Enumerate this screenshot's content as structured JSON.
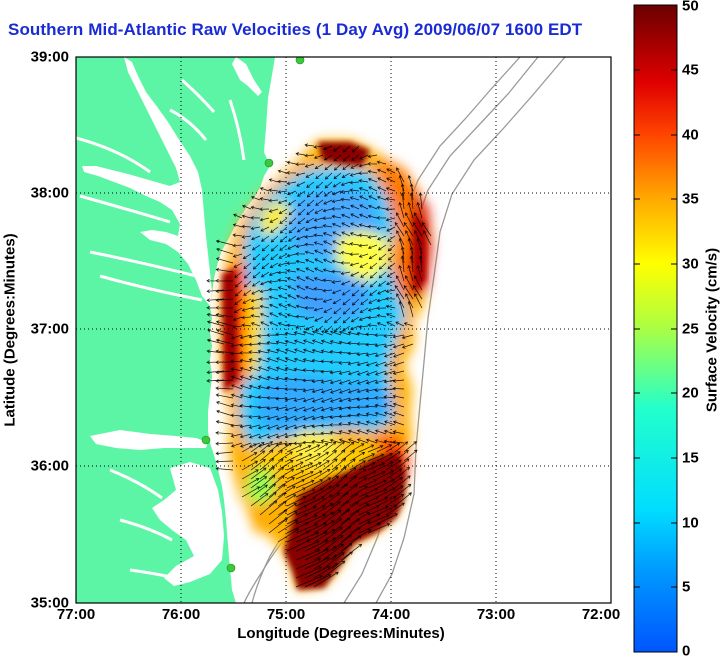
{
  "title": "Southern Mid-Atlantic Raw Velocities (1 Day Avg) 2009/06/07 1600 EDT",
  "axes": {
    "xlabel": "Longitude (Degrees:Minutes)",
    "ylabel": "Latitude (Degrees:Minutes)",
    "xticks": [
      "77:00",
      "76:00",
      "75:00",
      "74:00",
      "73:00",
      "72:00"
    ],
    "yticks": [
      "39:00",
      "38:00",
      "37:00",
      "36:00",
      "35:00"
    ],
    "xlim": [
      -77,
      -72
    ],
    "ylim": [
      35,
      39
    ],
    "grid": "dotted"
  },
  "colorbar": {
    "label": "Surface Velocity (cm/s)",
    "ticks": [
      "50",
      "45",
      "40",
      "35",
      "30",
      "25",
      "20",
      "15",
      "10",
      "5",
      "0"
    ],
    "range": [
      0,
      50
    ],
    "colormap": "jet"
  },
  "colors": {
    "land": "#5cf5a5",
    "water": "#ffffff",
    "title": "#1a2bd6",
    "grid": "#000000",
    "bathymetry": "#9a9a9a",
    "stations": "#3cc83c",
    "vectors": "#000000"
  },
  "stations": [
    {
      "lon": -74.9,
      "lat": 39.0
    },
    {
      "lon": -75.1,
      "lat": 38.2
    },
    {
      "lon": -75.65,
      "lat": 36.2
    },
    {
      "lon": -75.45,
      "lat": 35.25
    }
  ]
}
